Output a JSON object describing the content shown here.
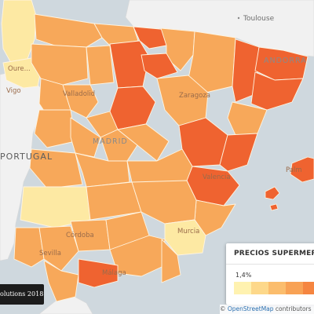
{
  "map": {
    "labels": {
      "toulouse": "Toulouse",
      "andorra": "ANDORRA",
      "portugal": "PORTUGAL",
      "madrid": "MADRID",
      "valladolid": "Valladolid",
      "zaragoza": "Zaragoza",
      "valencia": "Valencia",
      "murcia": "Murcia",
      "cordoba": "Córdoba",
      "sevilla": "Sevilla",
      "malaga": "Málaga",
      "ourense": "Oure...",
      "palma": "Palm",
      "vigo": "Vigo",
      "vigo2": "Vigo"
    }
  },
  "legend": {
    "title": "PRECIOS SUPERMERCADOS",
    "min_label": "1,4%",
    "swatches": [
      "#fff2b0",
      "#fdd88a",
      "#fbbd6d",
      "#f8a255",
      "#f58540",
      "#ef6330"
    ]
  },
  "credit": {
    "text": "olutions  2018"
  },
  "attribution": {
    "prefix": "© ",
    "osm": "OpenStreetMap",
    "suffix": " contributors"
  },
  "colors": {
    "sea": "#cfd8de",
    "land_outside": "#f1f1f1",
    "region_light": "#fde9a3",
    "region_mid": "#f7a85a",
    "region_dark": "#ef6330"
  }
}
